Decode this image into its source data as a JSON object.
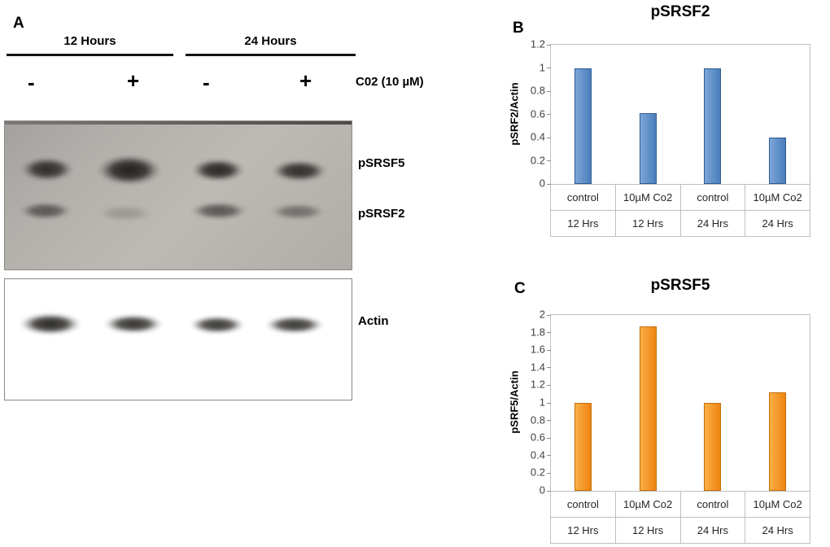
{
  "panels": {
    "a": "A",
    "b": "B",
    "c": "C"
  },
  "panel_a": {
    "time_groups": [
      "12 Hours",
      "24 Hours"
    ],
    "treatment_label": "C02 (10 µM)",
    "lane_signs": [
      "-",
      "+",
      "-",
      "+"
    ],
    "blot1_labels": [
      "pSRSF5",
      "pSRSF2"
    ],
    "blot2_label": "Actin"
  },
  "chart_data": [
    {
      "type": "bar",
      "panel": "B",
      "title": "pSRSF2",
      "ylabel": "pSRF2/Actin",
      "categories_top": [
        "control",
        "10µM Co2",
        "control",
        "10µM Co2"
      ],
      "categories_bottom": [
        "12 Hrs",
        "12 Hrs",
        "24 Hrs",
        "24 Hrs"
      ],
      "values": [
        1.0,
        0.61,
        1.0,
        0.4
      ],
      "ylim": [
        0,
        1.2
      ],
      "ytick_step": 0.2,
      "grid": "off",
      "legend": "none",
      "bar_color": "#4A7EBB",
      "bar_color_light": "#7CA6D8",
      "bar_border": "#2E5A92"
    },
    {
      "type": "bar",
      "panel": "C",
      "title": "pSRSF5",
      "ylabel": "pSRF5/Actin",
      "categories_top": [
        "control",
        "10µM Co2",
        "control",
        "10µM Co2"
      ],
      "categories_bottom": [
        "12 Hrs",
        "12 Hrs",
        "24 Hrs",
        "24 Hrs"
      ],
      "values": [
        1.0,
        1.87,
        1.0,
        1.12
      ],
      "ylim": [
        0,
        2
      ],
      "ytick_step": 0.2,
      "grid": "off",
      "legend": "none",
      "bar_color": "#EE8412",
      "bar_color_light": "#FBAF46",
      "bar_border": "#C66D08"
    }
  ]
}
